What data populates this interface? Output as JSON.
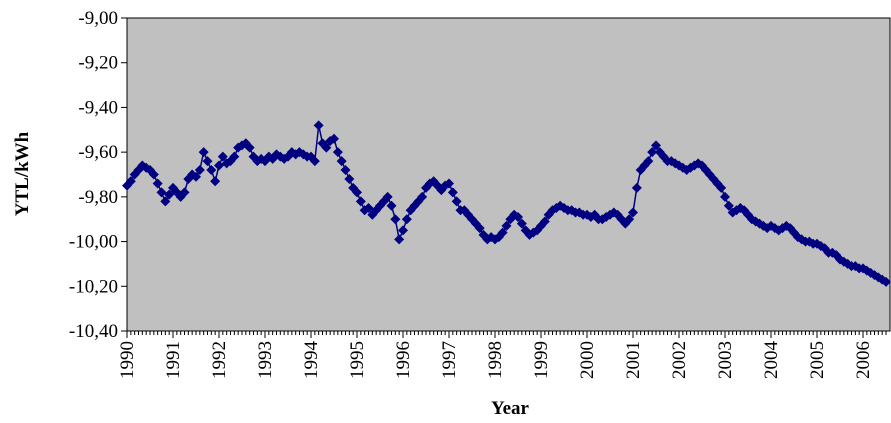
{
  "chart_data": {
    "type": "line",
    "marker": "diamond",
    "y_label": "YTL/kWh",
    "x_label": "Year",
    "categories": [
      "1990",
      null,
      null,
      null,
      null,
      null,
      null,
      null,
      null,
      null,
      null,
      null,
      "1991",
      null,
      null,
      null,
      null,
      null,
      null,
      null,
      null,
      null,
      null,
      null,
      "1992",
      null,
      null,
      null,
      null,
      null,
      null,
      null,
      null,
      null,
      null,
      null,
      "1993",
      null,
      null,
      null,
      null,
      null,
      null,
      null,
      null,
      null,
      null,
      null,
      "1994",
      null,
      null,
      null,
      null,
      null,
      null,
      null,
      null,
      null,
      null,
      null,
      "1995",
      null,
      null,
      null,
      null,
      null,
      null,
      null,
      null,
      null,
      null,
      null,
      "1996",
      null,
      null,
      null,
      null,
      null,
      null,
      null,
      null,
      null,
      null,
      null,
      "1997",
      null,
      null,
      null,
      null,
      null,
      null,
      null,
      null,
      null,
      null,
      null,
      "1998",
      null,
      null,
      null,
      null,
      null,
      null,
      null,
      null,
      null,
      null,
      null,
      "1999",
      null,
      null,
      null,
      null,
      null,
      null,
      null,
      null,
      null,
      null,
      null,
      "2000",
      null,
      null,
      null,
      null,
      null,
      null,
      null,
      null,
      null,
      null,
      null,
      "2001",
      null,
      null,
      null,
      null,
      null,
      null,
      null,
      null,
      null,
      null,
      null,
      "2002",
      null,
      null,
      null,
      null,
      null,
      null,
      null,
      null,
      null,
      null,
      null,
      "2003",
      null,
      null,
      null,
      null,
      null,
      null,
      null,
      null,
      null,
      null,
      null,
      "2004",
      null,
      null,
      null,
      null,
      null,
      null,
      null,
      null,
      null,
      null,
      null,
      "2005",
      null,
      null,
      null,
      null,
      null,
      null,
      null,
      null,
      null,
      null,
      null,
      "2006",
      null,
      null,
      null,
      null,
      null,
      null
    ],
    "series": [
      {
        "color": "#000080",
        "values": [
          -9.75,
          -9.73,
          -9.7,
          -9.68,
          -9.66,
          -9.67,
          -9.68,
          -9.7,
          -9.74,
          -9.78,
          -9.82,
          -9.79,
          -9.76,
          -9.78,
          -9.8,
          -9.78,
          -9.72,
          -9.7,
          -9.71,
          -9.68,
          -9.6,
          -9.64,
          -9.68,
          -9.73,
          -9.66,
          -9.62,
          -9.65,
          -9.64,
          -9.62,
          -9.58,
          -9.57,
          -9.56,
          -9.58,
          -9.62,
          -9.64,
          -9.63,
          -9.64,
          -9.62,
          -9.63,
          -9.61,
          -9.62,
          -9.63,
          -9.62,
          -9.6,
          -9.61,
          -9.6,
          -9.61,
          -9.62,
          -9.62,
          -9.64,
          -9.48,
          -9.56,
          -9.58,
          -9.55,
          -9.54,
          -9.6,
          -9.64,
          -9.68,
          -9.72,
          -9.76,
          -9.78,
          -9.82,
          -9.86,
          -9.85,
          -9.88,
          -9.86,
          -9.84,
          -9.82,
          -9.8,
          -9.84,
          -9.9,
          -9.99,
          -9.95,
          -9.9,
          -9.86,
          -9.84,
          -9.82,
          -9.8,
          -9.76,
          -9.74,
          -9.73,
          -9.75,
          -9.77,
          -9.75,
          -9.74,
          -9.78,
          -9.82,
          -9.86,
          -9.86,
          -9.88,
          -9.9,
          -9.92,
          -9.94,
          -9.97,
          -9.99,
          -9.98,
          -9.99,
          -9.98,
          -9.96,
          -9.93,
          -9.9,
          -9.88,
          -9.89,
          -9.92,
          -9.95,
          -9.97,
          -9.96,
          -9.95,
          -9.93,
          -9.91,
          -9.88,
          -9.86,
          -9.85,
          -9.84,
          -9.85,
          -9.86,
          -9.86,
          -9.87,
          -9.87,
          -9.88,
          -9.88,
          -9.89,
          -9.88,
          -9.9,
          -9.9,
          -9.89,
          -9.88,
          -9.87,
          -9.88,
          -9.9,
          -9.92,
          -9.9,
          -9.87,
          -9.76,
          -9.68,
          -9.66,
          -9.64,
          -9.6,
          -9.57,
          -9.6,
          -9.62,
          -9.64,
          -9.64,
          -9.65,
          -9.66,
          -9.67,
          -9.68,
          -9.67,
          -9.66,
          -9.65,
          -9.66,
          -9.68,
          -9.7,
          -9.72,
          -9.74,
          -9.76,
          -9.8,
          -9.84,
          -9.87,
          -9.86,
          -9.85,
          -9.86,
          -9.88,
          -9.9,
          -9.91,
          -9.92,
          -9.93,
          -9.94,
          -9.93,
          -9.94,
          -9.95,
          -9.94,
          -9.93,
          -9.94,
          -9.96,
          -9.98,
          -9.99,
          -10.0,
          -10.0,
          -10.01,
          -10.01,
          -10.02,
          -10.03,
          -10.05,
          -10.05,
          -10.06,
          -10.08,
          -10.09,
          -10.1,
          -10.11,
          -10.11,
          -10.12,
          -10.12,
          -10.13,
          -10.14,
          -10.15,
          -10.16,
          -10.17,
          -10.18
        ]
      }
    ],
    "ylim": [
      -10.4,
      -9
    ],
    "yticks": [
      {
        "value": -9,
        "label": "-9,00"
      },
      {
        "value": -9.2,
        "label": "-9,20"
      },
      {
        "value": -9.4,
        "label": "-9,40"
      },
      {
        "value": -9.6,
        "label": "-9,60"
      },
      {
        "value": -9.8,
        "label": "-9,80"
      },
      {
        "value": -10,
        "label": "-10,00"
      },
      {
        "value": -10.2,
        "label": "-10,20"
      },
      {
        "value": -10.4,
        "label": "-10,40"
      }
    ],
    "grid": false,
    "plot_background": "#c0c0c0"
  }
}
